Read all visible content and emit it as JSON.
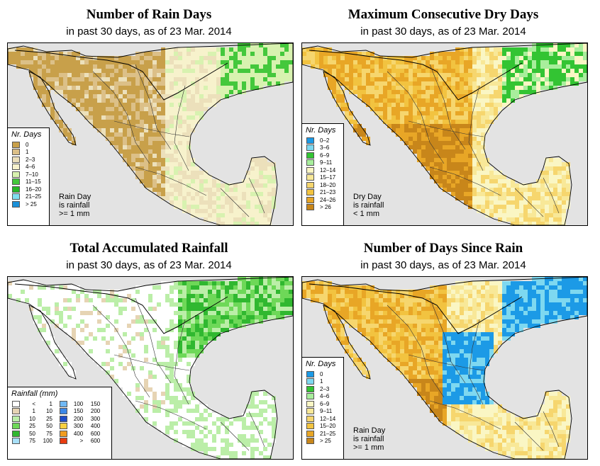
{
  "colors": {
    "rain_days": [
      "#c8a04a",
      "#dcc088",
      "#ece0bb",
      "#f7f2cc",
      "#d8f2b0",
      "#44c83c",
      "#26b826",
      "#80e0f0",
      "#1a90d8"
    ],
    "dry_days": [
      "#1c9ae6",
      "#7ed8f0",
      "#33c433",
      "#a8ee9c",
      "#faf6c4",
      "#f8e898",
      "#f6d66e",
      "#f2c340",
      "#e8a626",
      "#c8861a"
    ],
    "rainfall": [
      "#ffffff",
      "#e6d4b4",
      "#bbeea8",
      "#6ed858",
      "#30b830",
      "#a8e0f8",
      "#70b8f4",
      "#3c88e8",
      "#1e4cc8",
      "#f8d040",
      "#f09c20",
      "#e83c10"
    ],
    "since_rain": [
      "#1c9ae6",
      "#7ed8f0",
      "#33c433",
      "#a8ee9c",
      "#faf6c4",
      "#f8e898",
      "#f6d66e",
      "#f2c340",
      "#e8a626",
      "#c8861a"
    ],
    "sea": "#e3e3e3"
  },
  "panels": [
    {
      "title": "Number of Rain Days",
      "subtitle": "in past 30 days, as of  23 Mar. 2014",
      "legend_title": "Nr. Days",
      "legend": [
        "0",
        "1",
        "2–3",
        "4–6",
        "7–10",
        "11–15",
        "16–20",
        "21–25",
        "> 25"
      ],
      "note": [
        "Rain Day",
        "is rainfall",
        ">= 1 mm"
      ]
    },
    {
      "title": "Maximum Consecutive Dry Days",
      "subtitle": "in past 30 days, as of  23 Mar. 2014",
      "legend_title": "Nr. Days",
      "legend": [
        "0–2",
        "3–6",
        "6–9",
        "9–11",
        "12–14",
        "15–17",
        "18–20",
        "21–23",
        "24–26",
        "> 26"
      ],
      "note": [
        "Dry Day",
        "is rainfall",
        "< 1 mm"
      ]
    },
    {
      "title": "Total Accumulated Rainfall",
      "subtitle": "in past 30 days, as of  23 Mar. 2014",
      "legend_title": "Rainfall (mm)",
      "legend_left": [
        [
          "<",
          "1"
        ],
        [
          "1",
          "10"
        ],
        [
          "10",
          "25"
        ],
        [
          "25",
          "50"
        ],
        [
          "50",
          "75"
        ],
        [
          "75",
          "100"
        ]
      ],
      "legend_right": [
        [
          "100",
          "150"
        ],
        [
          "150",
          "200"
        ],
        [
          "200",
          "300"
        ],
        [
          "300",
          "400"
        ],
        [
          "400",
          "600"
        ],
        [
          ">",
          "600"
        ]
      ]
    },
    {
      "title": "Number of Days Since Rain",
      "subtitle": "in past 30 days, as of  23 Mar. 2014",
      "legend_title": "Nr. Days",
      "legend": [
        "0",
        "1",
        "2–3",
        "4–6",
        "6–9",
        "9–11",
        "12–14",
        "15–20",
        "21–25",
        "> 25"
      ],
      "note": [
        "Rain Day",
        "is rainfall",
        ">= 1 mm"
      ]
    }
  ]
}
